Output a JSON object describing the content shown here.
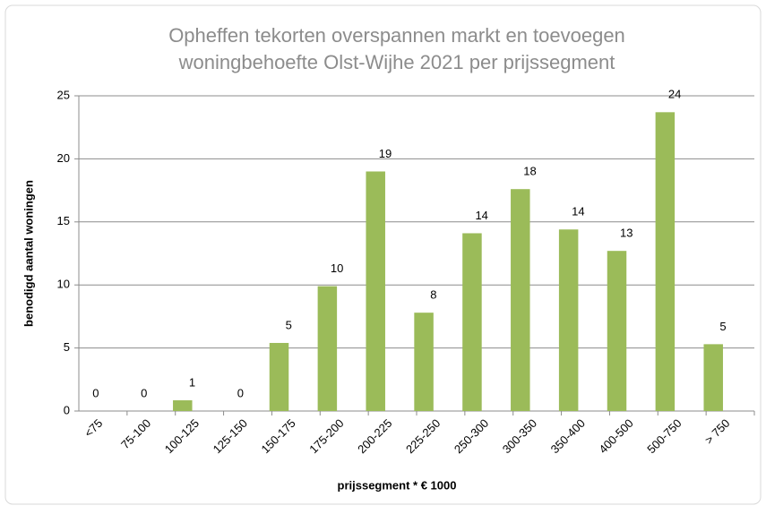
{
  "chart_data": {
    "type": "bar",
    "title": [
      "Opheffen tekorten overspannen markt en toevoegen",
      "woningbehoefte Olst-Wijhe 2021 per prijssegment"
    ],
    "x_label": "prijssegment  * € 1000",
    "y_label": "benodigd  aantal woningen",
    "categories": [
      "<75",
      "75-100",
      "100-125",
      "125-150",
      "150-175",
      "175-200",
      "200-225",
      "225-250",
      "250-300",
      "300-350",
      "350-400",
      "400-500",
      "500-750",
      "> 750"
    ],
    "values": [
      0,
      0,
      0.85,
      0,
      5.4,
      9.9,
      19.0,
      7.8,
      14.1,
      17.6,
      14.4,
      12.7,
      23.7,
      5.3
    ],
    "value_labels": [
      "0",
      "0",
      "1",
      "0",
      "5",
      "10",
      "19",
      "8",
      "14",
      "18",
      "14",
      "13",
      "24",
      "5"
    ],
    "color": "#9bbb59",
    "ylim": [
      0,
      25
    ],
    "yticks": [
      0,
      5,
      10,
      15,
      20,
      25
    ],
    "grid": true
  }
}
